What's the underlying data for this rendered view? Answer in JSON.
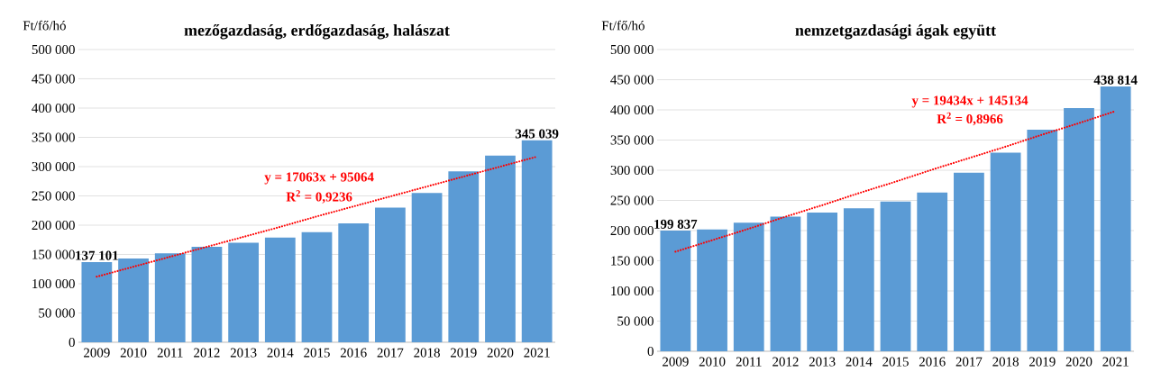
{
  "chart_data": [
    {
      "type": "bar",
      "title": "mezőgazdaság, erdőgazdaság, halászat",
      "ylabel": "Ft/fő/hó",
      "categories": [
        "2009",
        "2010",
        "2011",
        "2012",
        "2013",
        "2014",
        "2015",
        "2016",
        "2017",
        "2018",
        "2019",
        "2020",
        "2021"
      ],
      "series": [
        {
          "color": "#5b9bd5",
          "values": [
            137101,
            143000,
            152000,
            163000,
            170000,
            179000,
            188000,
            203000,
            230000,
            255000,
            292000,
            319000,
            345039
          ],
          "value_labels": [
            "137 101",
            null,
            null,
            null,
            null,
            null,
            null,
            null,
            null,
            null,
            null,
            null,
            "345 039"
          ]
        },
        {
          "type": "line",
          "color": "#ff0000",
          "line_style": "dotted",
          "marker": "none",
          "values": [
            112000,
            129000,
            146000,
            163000,
            180000,
            197000,
            215000,
            232000,
            249000,
            266000,
            283000,
            300000,
            317000
          ]
        }
      ],
      "ylim": [
        0,
        500000
      ],
      "yticks": [
        {
          "value": 0,
          "label": "0"
        },
        {
          "value": 50000,
          "label": "50 000"
        },
        {
          "value": 100000,
          "label": "100 000"
        },
        {
          "value": 150000,
          "label": "150 000"
        },
        {
          "value": 200000,
          "label": "200 000"
        },
        {
          "value": 250000,
          "label": "250 000"
        },
        {
          "value": 300000,
          "label": "300 000"
        },
        {
          "value": 350000,
          "label": "350 000"
        },
        {
          "value": 400000,
          "label": "400 000"
        },
        {
          "value": 450000,
          "label": "450 000"
        },
        {
          "value": 500000,
          "label": "500 000"
        }
      ],
      "grid": "y",
      "annotations": [
        "y = 17063x + 95064",
        "R$^{2}$ = 0,9236"
      ]
    },
    {
      "type": "bar",
      "title": "nemzetgazdasági ágak együtt",
      "ylabel": "Ft/fő/hó",
      "categories": [
        "2009",
        "2010",
        "2011",
        "2012",
        "2013",
        "2014",
        "2015",
        "2016",
        "2017",
        "2018",
        "2019",
        "2020",
        "2021"
      ],
      "series": [
        {
          "color": "#5b9bd5",
          "values": [
            199837,
            202000,
            213000,
            223000,
            230000,
            237000,
            248000,
            263000,
            296000,
            329000,
            367000,
            403000,
            438814
          ],
          "value_labels": [
            "199 837",
            null,
            null,
            null,
            null,
            null,
            null,
            null,
            null,
            null,
            null,
            null,
            "438 814"
          ]
        },
        {
          "type": "line",
          "color": "#ff0000",
          "line_style": "dotted",
          "marker": "none",
          "values": [
            165000,
            184000,
            203000,
            223000,
            242000,
            262000,
            281000,
            301000,
            320000,
            339000,
            359000,
            378000,
            398000
          ]
        }
      ],
      "ylim": [
        0,
        500000
      ],
      "yticks": [
        {
          "value": 0,
          "label": "0"
        },
        {
          "value": 50000,
          "label": "50 000"
        },
        {
          "value": 100000,
          "label": "100 000"
        },
        {
          "value": 150000,
          "label": "150 000"
        },
        {
          "value": 200000,
          "label": "200 000"
        },
        {
          "value": 250000,
          "label": "250 000"
        },
        {
          "value": 300000,
          "label": "300 000"
        },
        {
          "value": 350000,
          "label": "350 000"
        },
        {
          "value": 400000,
          "label": "400 000"
        },
        {
          "value": 450000,
          "label": "450 000"
        },
        {
          "value": 500000,
          "label": "500 000"
        }
      ],
      "grid": "y",
      "annotations": [
        "y = 19434x + 145134",
        "R$^{2}$ = 0,8966"
      ]
    }
  ]
}
